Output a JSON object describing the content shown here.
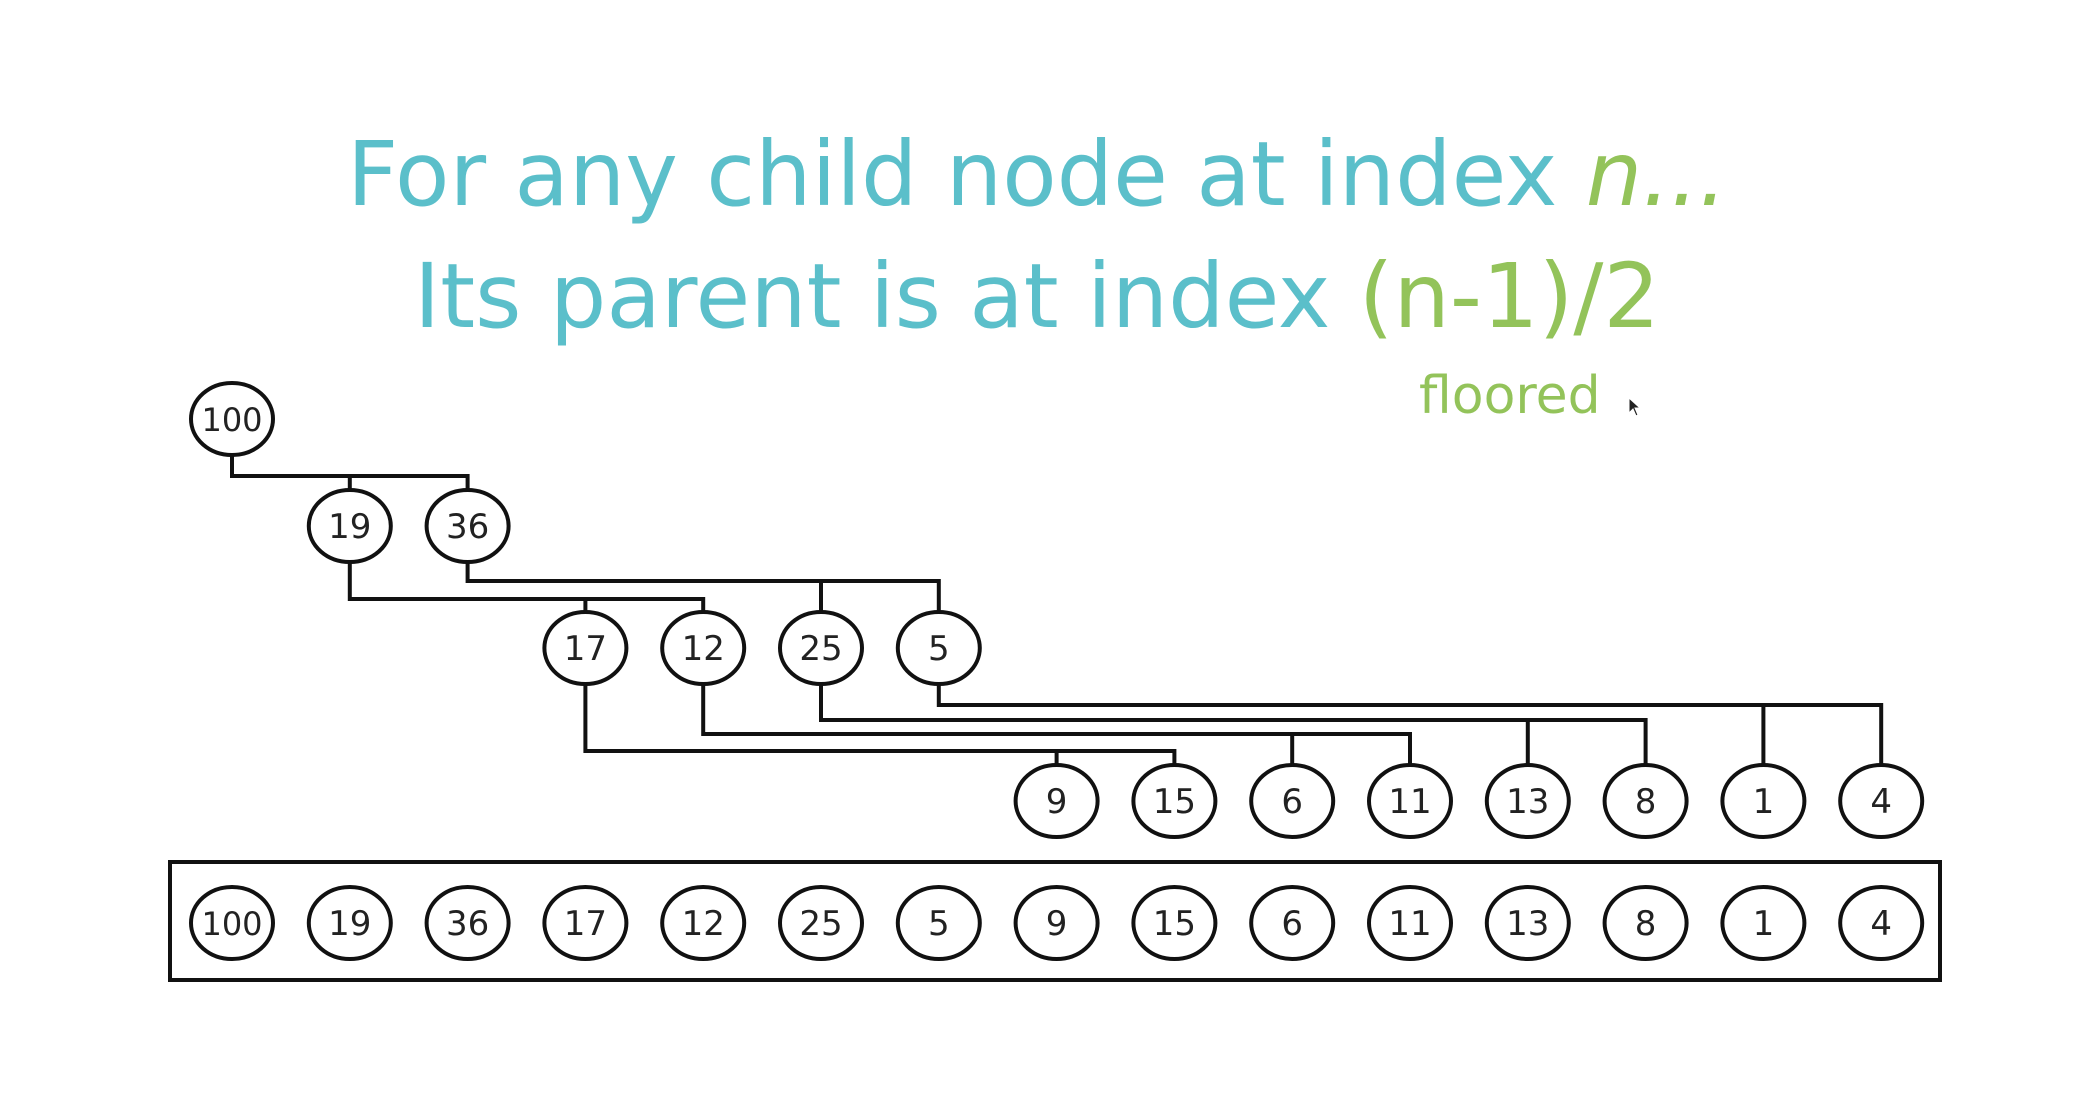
{
  "heading": {
    "line1_text": "For any child node at index ",
    "line1_var": "n...",
    "line2_text": "Its parent is at index ",
    "line2_formula": "(n-1)/2",
    "note": "floored"
  },
  "colors": {
    "primary_text": "#5bbfca",
    "accent_text": "#93c35a",
    "stroke": "#111111"
  },
  "heap_levels": [
    [
      "100"
    ],
    [
      "19",
      "36"
    ],
    [
      "17",
      "12",
      "25",
      "5"
    ],
    [
      "9",
      "15",
      "6",
      "11",
      "13",
      "8",
      "1",
      "4"
    ]
  ],
  "array_values": [
    "100",
    "19",
    "36",
    "17",
    "12",
    "25",
    "5",
    "9",
    "15",
    "6",
    "11",
    "13",
    "8",
    "1",
    "4"
  ],
  "cursor_icon": "mouse-pointer-icon"
}
